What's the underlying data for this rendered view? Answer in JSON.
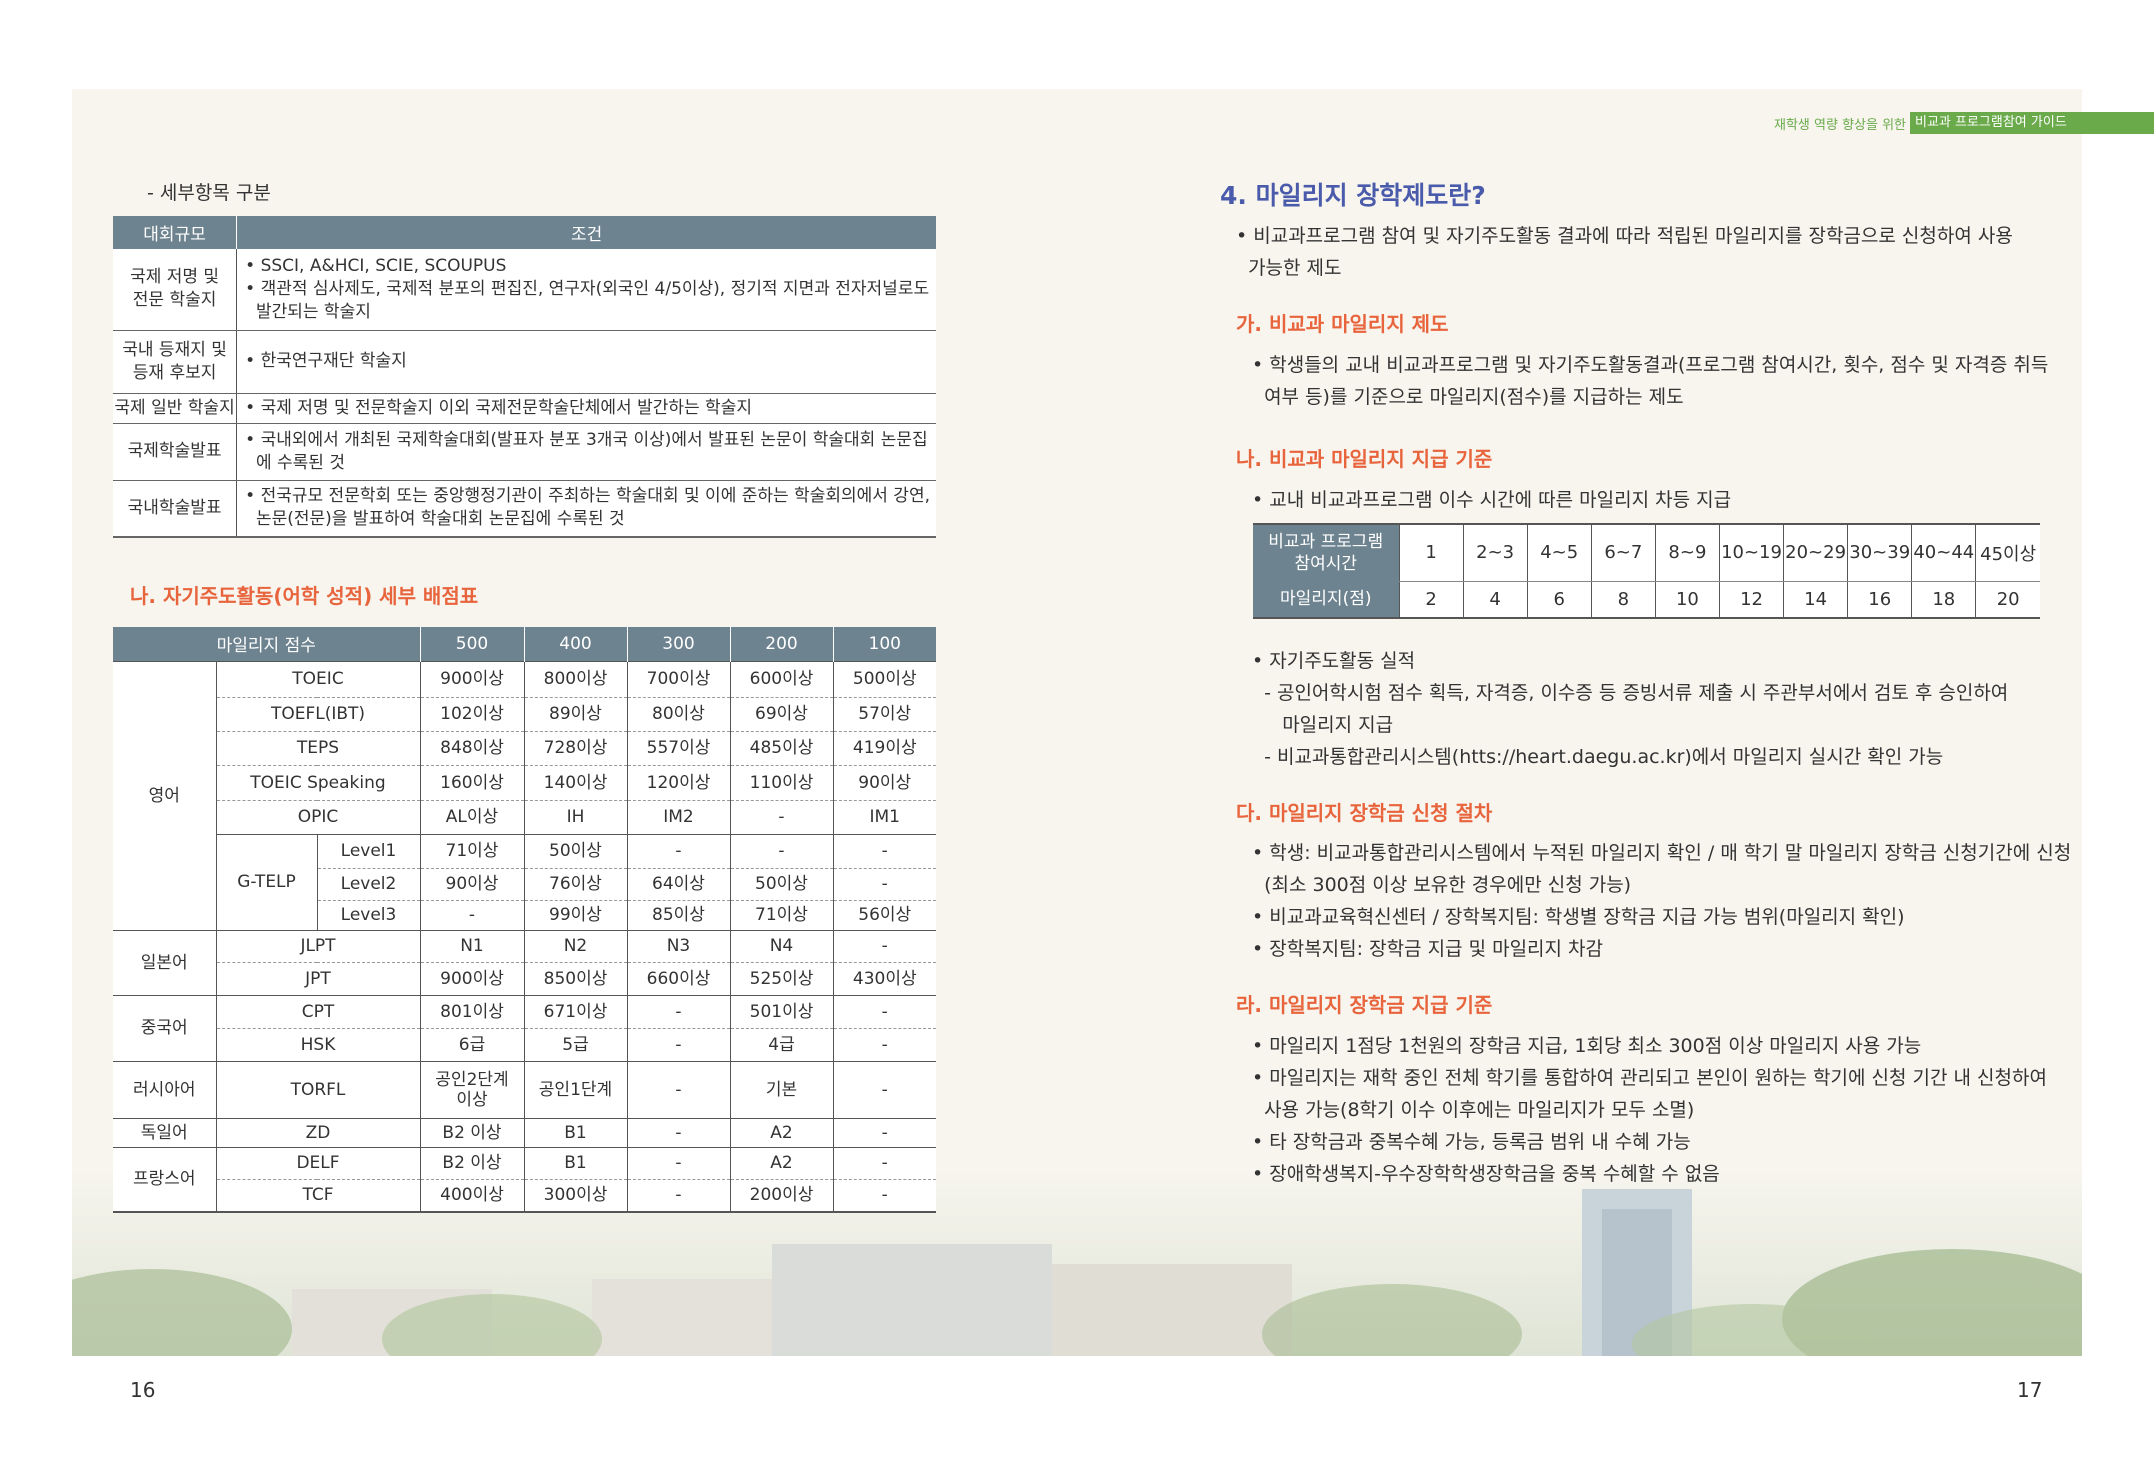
{
  "header": {
    "prefix": "재학생 역량 향상을 위한",
    "title": "비교과 프로그램참여 가이드",
    "accent": "#6aaa4a"
  },
  "left": {
    "subheading": "- 세부항목 구분",
    "table1": {
      "headers": [
        "대회규모",
        "조건"
      ],
      "rows": [
        {
          "scale": "국제 저명 및\n전문 학술지",
          "conditions": [
            "• SSCI, A&HCI, SCIE, SCOUPUS",
            "• 객관적 심사제도, 국제적 분포의 편집진, 연구자(외국인 4/5이상), 정기적 지면과 전자저널로도\n  발간되는 학술지"
          ]
        },
        {
          "scale": "국내 등재지 및\n등재 후보지",
          "conditions": [
            "• 한국연구재단 학술지"
          ]
        },
        {
          "scale": "국제 일반 학술지",
          "conditions": [
            "• 국제 저명 및 전문학술지 이외 국제전문학술단체에서 발간하는 학술지"
          ]
        },
        {
          "scale": "국제학술발표",
          "conditions": [
            "• 국내외에서 개최된 국제학술대회(발표자 분포 3개국 이상)에서 발표된 논문이 학술대회 논문집\n  에 수록된 것"
          ]
        },
        {
          "scale": "국내학술발표",
          "conditions": [
            "• 전국규모 전문학회 또는 중앙행정기관이 주최하는 학술대회 및 이에 준하는 학술회의에서 강연,\n  논문(전문)을 발표하여 학술대회 논문집에 수록된 것"
          ]
        }
      ]
    },
    "section_title": "나. 자기주도활동(어학 성적) 세부 배점표",
    "table2": {
      "headers": [
        "마일리지 점수",
        "500",
        "400",
        "300",
        "200",
        "100"
      ],
      "rows": [
        {
          "group": "영어",
          "test": "TOEIC",
          "level": "",
          "values": [
            "900이상",
            "800이상",
            "700이상",
            "600이상",
            "500이상"
          ]
        },
        {
          "group": "영어",
          "test": "TOEFL(IBT)",
          "level": "",
          "values": [
            "102이상",
            "89이상",
            "80이상",
            "69이상",
            "57이상"
          ]
        },
        {
          "group": "영어",
          "test": "TEPS",
          "level": "",
          "values": [
            "848이상",
            "728이상",
            "557이상",
            "485이상",
            "419이상"
          ]
        },
        {
          "group": "영어",
          "test": "TOEIC Speaking",
          "level": "",
          "values": [
            "160이상",
            "140이상",
            "120이상",
            "110이상",
            "90이상"
          ]
        },
        {
          "group": "영어",
          "test": "OPIC",
          "level": "",
          "values": [
            "AL이상",
            "IH",
            "IM2",
            "-",
            "IM1"
          ]
        },
        {
          "group": "영어",
          "test": "G-TELP",
          "level": "Level1",
          "values": [
            "71이상",
            "50이상",
            "-",
            "-",
            "-"
          ]
        },
        {
          "group": "영어",
          "test": "G-TELP",
          "level": "Level2",
          "values": [
            "90이상",
            "76이상",
            "64이상",
            "50이상",
            "-"
          ]
        },
        {
          "group": "영어",
          "test": "G-TELP",
          "level": "Level3",
          "values": [
            "-",
            "99이상",
            "85이상",
            "71이상",
            "56이상"
          ]
        },
        {
          "group": "일본어",
          "test": "JLPT",
          "level": "",
          "values": [
            "N1",
            "N2",
            "N3",
            "N4",
            "-"
          ]
        },
        {
          "group": "일본어",
          "test": "JPT",
          "level": "",
          "values": [
            "900이상",
            "850이상",
            "660이상",
            "525이상",
            "430이상"
          ]
        },
        {
          "group": "중국어",
          "test": "CPT",
          "level": "",
          "values": [
            "801이상",
            "671이상",
            "-",
            "501이상",
            "-"
          ]
        },
        {
          "group": "중국어",
          "test": "HSK",
          "level": "",
          "values": [
            "6급",
            "5급",
            "-",
            "4급",
            "-"
          ]
        },
        {
          "group": "러시아어",
          "test": "TORFL",
          "level": "",
          "values": [
            "공인2단계\n이상",
            "공인1단계",
            "-",
            "기본",
            "-"
          ]
        },
        {
          "group": "독일어",
          "test": "ZD",
          "level": "",
          "values": [
            "B2 이상",
            "B1",
            "-",
            "A2",
            "-"
          ]
        },
        {
          "group": "프랑스어",
          "test": "DELF",
          "level": "",
          "values": [
            "B2 이상",
            "B1",
            "-",
            "A2",
            "-"
          ]
        },
        {
          "group": "프랑스어",
          "test": "TCF",
          "level": "",
          "values": [
            "400이상",
            "300이상",
            "-",
            "200이상",
            "-"
          ]
        }
      ]
    },
    "page_number": "16"
  },
  "right": {
    "title": "4. 마일리지 장학제도란?",
    "intro": [
      "• 비교과프로그램 참여 및 자기주도활동 결과에 따라 적립된 마일리지를 장학금으로 신청하여 사용",
      "  가능한 제도"
    ],
    "sec_ga": {
      "title": "가. 비교과 마일리지 제도",
      "lines": [
        "• 학생들의 교내 비교과프로그램 및 자기주도활동결과(프로그램 참여시간, 횟수, 점수 및 자격증 취득",
        "  여부 등)를 기준으로 마일리지(점수)를 지급하는 제도"
      ]
    },
    "sec_na": {
      "title": "나. 비교과 마일리지 지급 기준",
      "lines": [
        "• 교내 비교과프로그램 이수 시간에 따른 마일리지 차등 지급"
      ],
      "table": {
        "row1_label": "비교과 프로그램\n참여시간",
        "hours": [
          "1",
          "2~3",
          "4~5",
          "6~7",
          "8~9",
          "10~19",
          "20~29",
          "30~39",
          "40~44",
          "45이상"
        ],
        "row2_label": "마일리지(점)",
        "points": [
          "2",
          "4",
          "6",
          "8",
          "10",
          "12",
          "14",
          "16",
          "18",
          "20"
        ]
      },
      "self_lines": [
        "• 자기주도활동 실적",
        "  - 공인어학시험 점수 획득, 자격증, 이수증 등 증빙서류 제출 시 주관부서에서 검토 후 승인하여",
        "     마일리지 지급",
        "  - 비교과통합관리시스템(htts://heart.daegu.ac.kr)에서 마일리지 실시간 확인 가능"
      ]
    },
    "sec_da": {
      "title": "다. 마일리지 장학금 신청 절차",
      "lines": [
        "• 학생: 비교과통합관리시스템에서 누적된 마일리지 확인 / 매 학기 말 마일리지 장학금 신청기간에 신청",
        "  (최소 300점 이상 보유한 경우에만 신청 가능)",
        "• 비교과교육혁신센터 / 장학복지팀: 학생별 장학금 지급 가능 범위(마일리지 확인)",
        "• 장학복지팀: 장학금 지급 및 마일리지 차감"
      ]
    },
    "sec_ra": {
      "title": "라. 마일리지 장학금 지급 기준",
      "lines": [
        "• 마일리지 1점당 1천원의 장학금 지급, 1회당 최소 300점 이상 마일리지 사용 가능",
        "• 마일리지는 재학 중인 전체 학기를 통합하여 관리되고 본인이 원하는 학기에 신청 기간 내 신청하여",
        "  사용 가능(8학기 이수 이후에는 마일리지가 모두 소멸)",
        "• 타 장학금과 중복수혜 가능, 등록금 범위 내 수혜 가능",
        "• 장애학생복지-우수장학학생장학금을 중복 수혜할 수 없음"
      ]
    },
    "page_number": "17"
  },
  "colors": {
    "table_header": "#6e8390",
    "section_heading": "#e8643c",
    "title": "#4a5bab",
    "background": "#f7f5ee"
  }
}
